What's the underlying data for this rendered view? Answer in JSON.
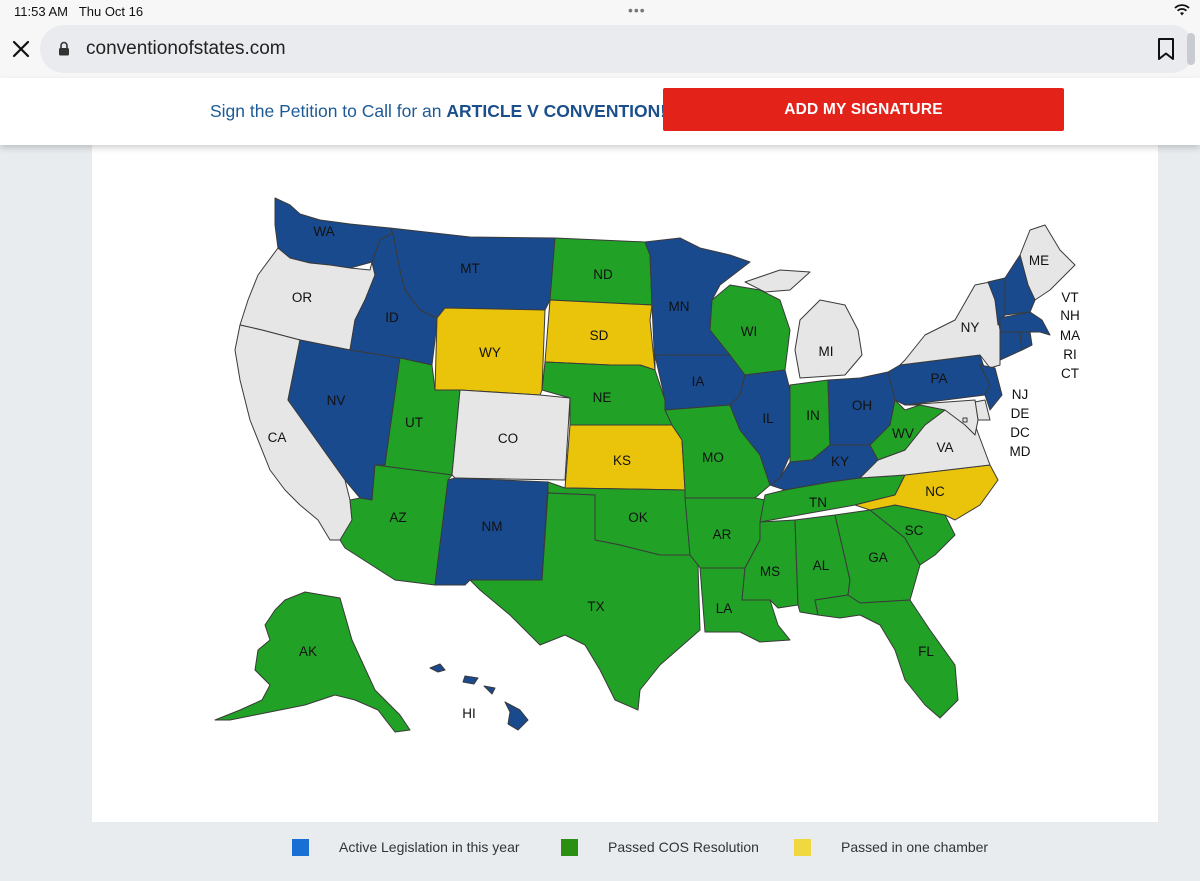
{
  "status_bar": {
    "time": "11:53 AM",
    "date": "Thu Oct 16",
    "dots": "•••"
  },
  "browser": {
    "url": "conventionofstates.com",
    "close_icon": "close-icon",
    "lock_icon": "lock-icon",
    "bookmark_icon": "bookmark-icon"
  },
  "banner": {
    "text_prefix": "Sign the Petition to Call for an ",
    "text_strong": "ARTICLE V CONVENTION!",
    "button_label": "ADD MY SIGNATURE",
    "button_color": "#e3221a"
  },
  "colors": {
    "active": "#1a4a8e",
    "passed": "#21a227",
    "one_chamber": "#e9c40b",
    "none": "#e6e6e6",
    "border": "#333333"
  },
  "legend": [
    {
      "label": "Active Legislation in this year",
      "color": "#1a6fd4"
    },
    {
      "label": "Passed COS Resolution",
      "color": "#2b8f14"
    },
    {
      "label": "Passed in one chamber",
      "color": "#f0d840"
    }
  ],
  "map": {
    "states": [
      {
        "code": "WA",
        "status": "active"
      },
      {
        "code": "OR",
        "status": "none"
      },
      {
        "code": "CA",
        "status": "none"
      },
      {
        "code": "ID",
        "status": "active"
      },
      {
        "code": "MT",
        "status": "active"
      },
      {
        "code": "WY",
        "status": "one_chamber"
      },
      {
        "code": "NV",
        "status": "active"
      },
      {
        "code": "UT",
        "status": "passed"
      },
      {
        "code": "AZ",
        "status": "passed"
      },
      {
        "code": "CO",
        "status": "none"
      },
      {
        "code": "NM",
        "status": "active"
      },
      {
        "code": "ND",
        "status": "passed"
      },
      {
        "code": "SD",
        "status": "one_chamber"
      },
      {
        "code": "NE",
        "status": "passed"
      },
      {
        "code": "KS",
        "status": "one_chamber"
      },
      {
        "code": "OK",
        "status": "passed"
      },
      {
        "code": "TX",
        "status": "passed"
      },
      {
        "code": "MN",
        "status": "active"
      },
      {
        "code": "IA",
        "status": "active"
      },
      {
        "code": "MO",
        "status": "passed"
      },
      {
        "code": "AR",
        "status": "passed"
      },
      {
        "code": "LA",
        "status": "passed"
      },
      {
        "code": "WI",
        "status": "passed"
      },
      {
        "code": "IL",
        "status": "active"
      },
      {
        "code": "MI",
        "status": "none"
      },
      {
        "code": "IN",
        "status": "passed"
      },
      {
        "code": "OH",
        "status": "active"
      },
      {
        "code": "KY",
        "status": "active"
      },
      {
        "code": "TN",
        "status": "passed"
      },
      {
        "code": "MS",
        "status": "passed"
      },
      {
        "code": "AL",
        "status": "passed"
      },
      {
        "code": "GA",
        "status": "passed"
      },
      {
        "code": "FL",
        "status": "passed"
      },
      {
        "code": "SC",
        "status": "passed"
      },
      {
        "code": "NC",
        "status": "one_chamber"
      },
      {
        "code": "VA",
        "status": "none"
      },
      {
        "code": "WV",
        "status": "passed"
      },
      {
        "code": "PA",
        "status": "active"
      },
      {
        "code": "NY",
        "status": "none"
      },
      {
        "code": "NJ",
        "status": "active"
      },
      {
        "code": "DE",
        "status": "none"
      },
      {
        "code": "MD",
        "status": "none"
      },
      {
        "code": "DC",
        "status": "none"
      },
      {
        "code": "ME",
        "status": "none"
      },
      {
        "code": "VT",
        "status": "active"
      },
      {
        "code": "NH",
        "status": "active"
      },
      {
        "code": "MA",
        "status": "active"
      },
      {
        "code": "RI",
        "status": "active"
      },
      {
        "code": "CT",
        "status": "active"
      },
      {
        "code": "AK",
        "status": "passed"
      },
      {
        "code": "HI",
        "status": "active"
      }
    ]
  }
}
